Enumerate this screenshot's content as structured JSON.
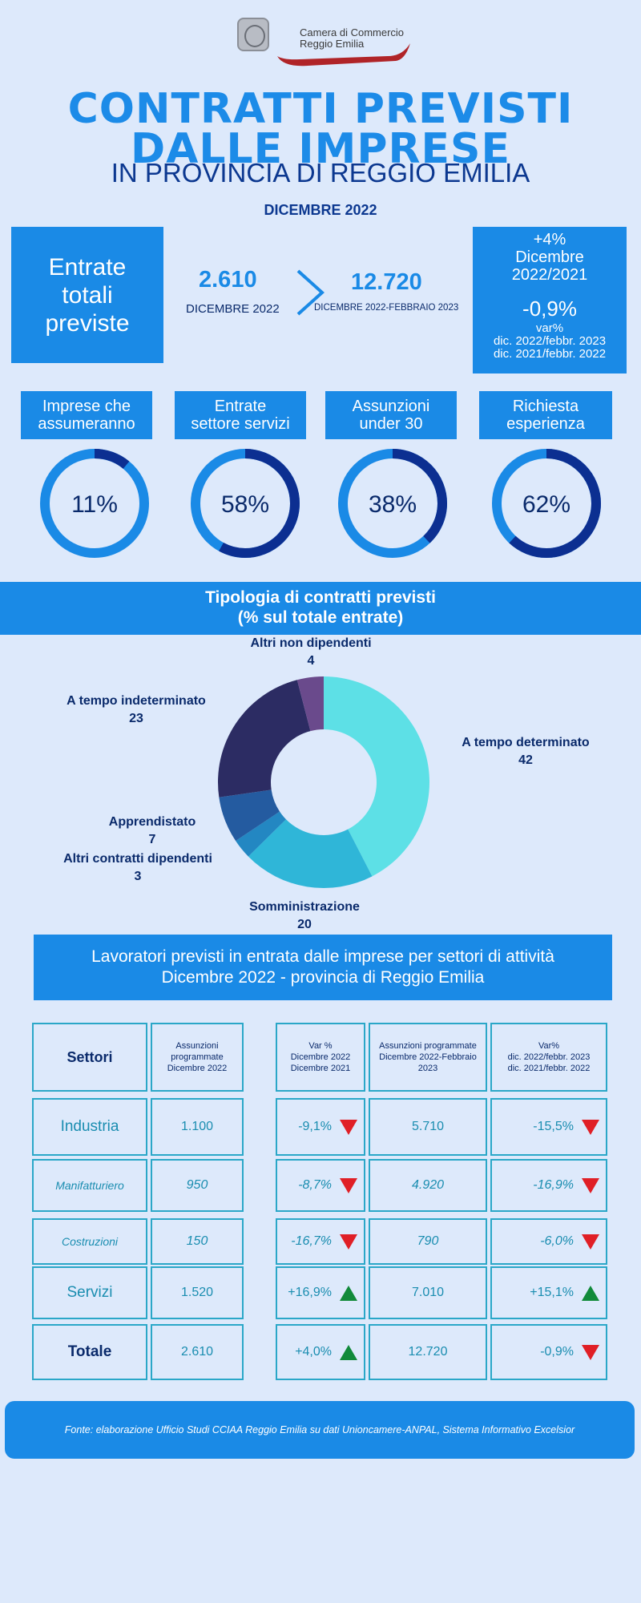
{
  "header": {
    "org_name_line1": "Camera di Commercio",
    "org_name_line2": "Reggio Emilia",
    "title_line1": "CONTRATTI PREVISTI",
    "title_line2": "DALLE IMPRESE",
    "title_line3": "IN PROVINCIA DI REGGIO EMILIA",
    "month": "DICEMBRE 2022"
  },
  "kpi": {
    "left_box": [
      "Entrate",
      "totali",
      "previste"
    ],
    "value_month": "2.610",
    "label_month": "DICEMBRE 2022",
    "value_quarter": "12.720",
    "label_quarter": "DICEMBRE 2022-FEBBRAIO 2023",
    "right_box": {
      "var_month": "+4%",
      "var_month_label1": "Dicembre",
      "var_month_label2": "2022/2021",
      "var_quarter": "-0,9%",
      "var_quarter_label1": "var%",
      "var_quarter_label2": "dic. 2022/febbr. 2023",
      "var_quarter_label3": "dic. 2021/febbr. 2022"
    }
  },
  "indicators": [
    {
      "label1": "Imprese che",
      "label2": "assumeranno",
      "value": 11,
      "text": "11%"
    },
    {
      "label1": "Entrate",
      "label2": "settore servizi",
      "value": 58,
      "text": "58%"
    },
    {
      "label1": "Assunzioni",
      "label2": "under 30",
      "value": 38,
      "text": "38%"
    },
    {
      "label1": "Richiesta",
      "label2": "esperienza",
      "value": 62,
      "text": "62%"
    }
  ],
  "colors": {
    "accent": "#1a8ae6",
    "navy": "#0a2a6b",
    "gauge_dark": "#0c2f91",
    "gauge_light": "#1a8ae6",
    "up": "#118a3a",
    "down": "#e01f26"
  },
  "chart_data": {
    "type": "pie",
    "title": "Tipologia di contratti previsti",
    "subtitle": "(% sul totale entrate)",
    "slices": [
      {
        "name": "A tempo determinato",
        "value": 42,
        "text": "42",
        "color": "#5de0e6"
      },
      {
        "name": "Somministrazione",
        "value": 20,
        "text": "20",
        "color": "#2fb6d8"
      },
      {
        "name": "Altri contratti dipendenti",
        "value": 3,
        "text": "3",
        "color": "#2387c2"
      },
      {
        "name": "Apprendistato",
        "value": 7,
        "text": "7",
        "color": "#245ba0"
      },
      {
        "name": "A tempo indeterminato",
        "value": 23,
        "text": "23",
        "color": "#2c2c63"
      },
      {
        "name": "Altri non dipendenti",
        "value": 4,
        "text": "4",
        "color": "#6a4a8c"
      }
    ]
  },
  "table": {
    "title_line1": "Lavoratori previsti in entrata dalle imprese per settori di attività",
    "title_line2": "Dicembre 2022 - provincia di Reggio Emilia",
    "headers": {
      "settori": "Settori",
      "col1": "Assunzioni programmate Dicembre 2022",
      "col2_line1": "Var %",
      "col2_line2": "Dicembre 2022",
      "col2_line3": "Dicembre 2021",
      "col3": "Assunzioni programmate Dicembre 2022-Febbraio 2023",
      "col4_line1": "Var%",
      "col4_line2": "dic. 2022/febbr. 2023",
      "col4_line3": "dic. 2021/febbr. 2022"
    },
    "rows": [
      {
        "sector": "Industria",
        "ass_month": "1.100",
        "var_month": "-9,1%",
        "trend_month": "down",
        "ass_quarter": "5.710",
        "var_quarter": "-15,5%",
        "trend_quarter": "down"
      },
      {
        "sector": "Manifatturiero",
        "ass_month": "950",
        "var_month": "-8,7%",
        "trend_month": "down",
        "ass_quarter": "4.920",
        "var_quarter": "-16,9%",
        "trend_quarter": "down"
      },
      {
        "sector": "Costruzioni",
        "ass_month": "150",
        "var_month": "-16,7%",
        "trend_month": "down",
        "ass_quarter": "790",
        "var_quarter": "-6,0%",
        "trend_quarter": "down"
      },
      {
        "sector": "Servizi",
        "ass_month": "1.520",
        "var_month": "+16,9%",
        "trend_month": "up",
        "ass_quarter": "7.010",
        "var_quarter": "+15,1%",
        "trend_quarter": "up"
      },
      {
        "sector": "Totale",
        "ass_month": "2.610",
        "var_month": "+4,0%",
        "trend_month": "up",
        "ass_quarter": "12.720",
        "var_quarter": "-0,9%",
        "trend_quarter": "down"
      }
    ]
  },
  "source": "Fonte: elaborazione Ufficio Studi CCIAA Reggio Emilia su dati Unioncamere-ANPAL, Sistema Informativo Excelsior"
}
